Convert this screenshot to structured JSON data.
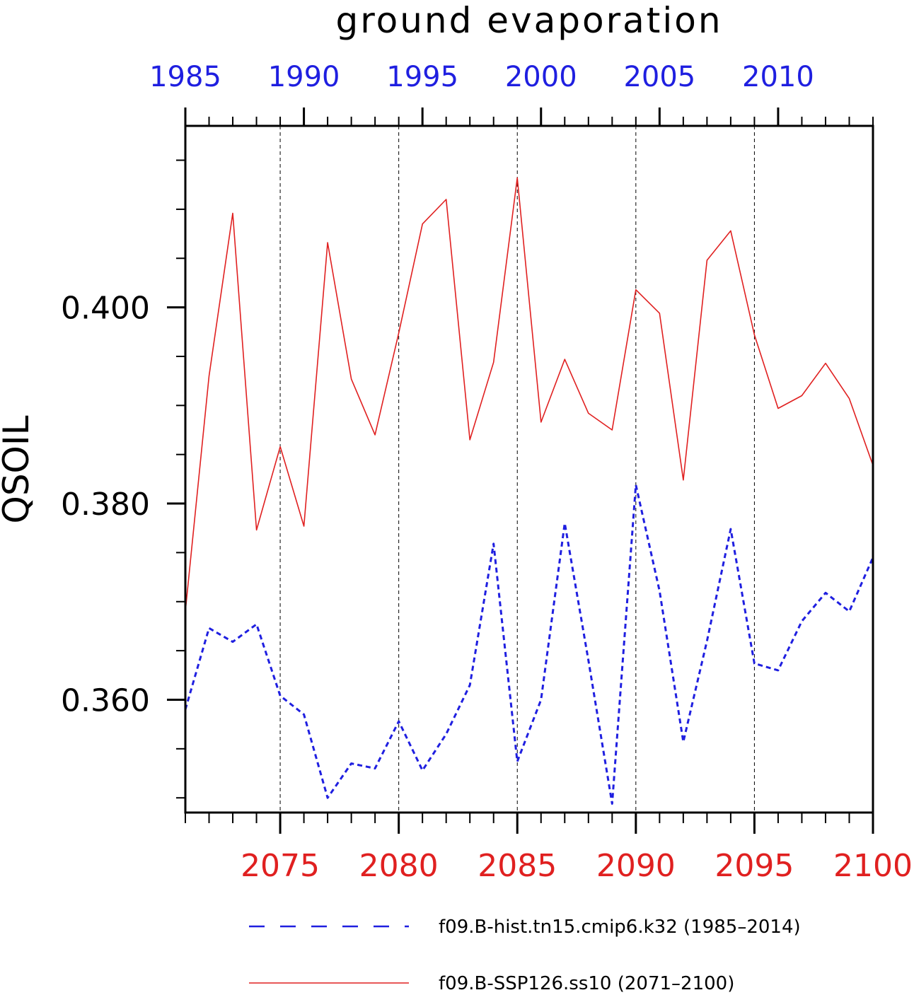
{
  "chart_data": {
    "type": "line",
    "title": "ground evaporation",
    "ylabel": "QSOIL",
    "ylim": [
      0.3485,
      0.4185
    ],
    "yticks_major": [
      0.36,
      0.38,
      0.4
    ],
    "ytick_labels": [
      "0.360",
      "0.380",
      "0.400"
    ],
    "yticks_minor": [
      0.35,
      0.355,
      0.365,
      0.37,
      0.375,
      0.385,
      0.39,
      0.395,
      0.405,
      0.41,
      0.415
    ],
    "x_bottom": {
      "range": [
        2071,
        2100
      ],
      "tick_values": [
        2075,
        2080,
        2085,
        2090,
        2095,
        2100
      ],
      "tick_labels": [
        "2075",
        "2080",
        "2085",
        "2090",
        "2095",
        "2100"
      ],
      "color": "#e02020"
    },
    "x_top": {
      "range": [
        1985,
        2014
      ],
      "tick_values": [
        1985,
        1990,
        1995,
        2000,
        2005,
        2010
      ],
      "tick_labels": [
        "1985",
        "1990",
        "1995",
        "2000",
        "2005",
        "2010"
      ],
      "color": "#1f1fe0"
    },
    "grid": "vertical dashed at major ticks",
    "legend_placement": "bottom",
    "series": [
      {
        "name": "f09.B-hist.tn15.cmip6.k32 (1985–2014)",
        "axis": "top",
        "color": "#1f1fe0",
        "style": "dashed",
        "x": [
          1985,
          1986,
          1987,
          1988,
          1989,
          1990,
          1991,
          1992,
          1993,
          1994,
          1995,
          1996,
          1997,
          1998,
          1999,
          2000,
          2001,
          2002,
          2003,
          2004,
          2005,
          2006,
          2007,
          2008,
          2009,
          2010,
          2011,
          2012,
          2013,
          2014
        ],
        "values": [
          0.359,
          0.3673,
          0.3659,
          0.3677,
          0.3604,
          0.3585,
          0.35,
          0.3535,
          0.353,
          0.3578,
          0.3528,
          0.3565,
          0.3615,
          0.3759,
          0.3537,
          0.36,
          0.378,
          0.364,
          0.3494,
          0.3819,
          0.3711,
          0.3557,
          0.366,
          0.3774,
          0.3637,
          0.363,
          0.368,
          0.3709,
          0.369,
          0.3745
        ]
      },
      {
        "name": "f09.B-SSP126.ss10 (2071–2100)",
        "axis": "bottom",
        "color": "#e02020",
        "style": "solid",
        "x": [
          2071,
          2072,
          2073,
          2074,
          2075,
          2076,
          2077,
          2078,
          2079,
          2080,
          2081,
          2082,
          2083,
          2084,
          2085,
          2086,
          2087,
          2088,
          2089,
          2090,
          2091,
          2092,
          2093,
          2094,
          2095,
          2096,
          2097,
          2098,
          2099,
          2100
        ],
        "values": [
          0.369,
          0.393,
          0.4096,
          0.3773,
          0.3858,
          0.3777,
          0.4066,
          0.3927,
          0.387,
          0.3974,
          0.4085,
          0.411,
          0.3865,
          0.3944,
          0.4132,
          0.3883,
          0.3947,
          0.3892,
          0.3875,
          0.4018,
          0.3994,
          0.3824,
          0.4048,
          0.4078,
          0.3972,
          0.3897,
          0.391,
          0.3943,
          0.3907,
          0.3839
        ]
      }
    ]
  }
}
